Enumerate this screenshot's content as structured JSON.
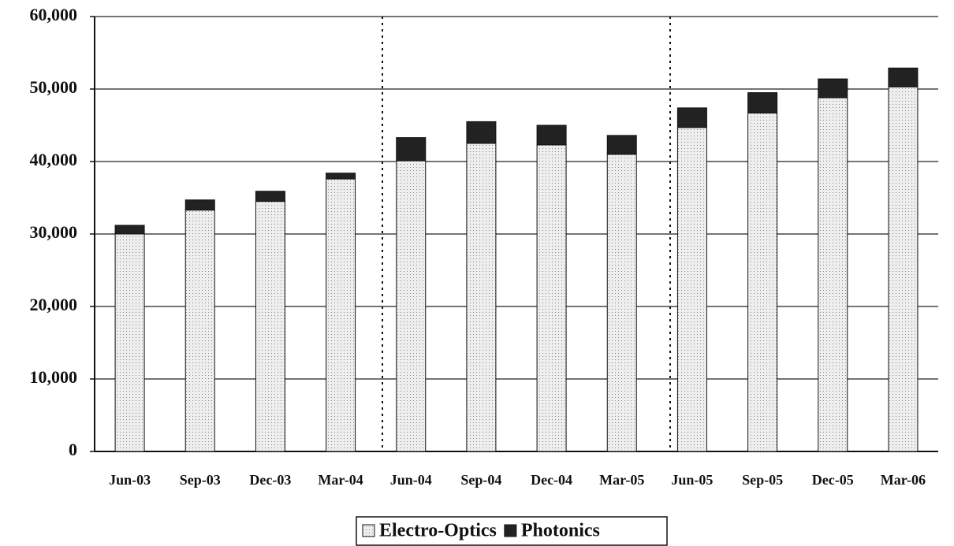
{
  "chart_data": {
    "type": "stacked_bar",
    "categories": [
      "Jun-03",
      "Sep-03",
      "Dec-03",
      "Mar-04",
      "Jun-04",
      "Sep-04",
      "Dec-04",
      "Mar-05",
      "Jun-05",
      "Sep-05",
      "Dec-05",
      "Mar-06"
    ],
    "series": [
      {
        "name": "Electro-Optics",
        "color": "#e6e6e6",
        "values": [
          30000,
          33300,
          34500,
          37600,
          40100,
          42500,
          42300,
          41000,
          44700,
          46700,
          48800,
          50300
        ]
      },
      {
        "name": "Photonics",
        "color": "#222222",
        "values": [
          1200,
          1400,
          1400,
          800,
          3200,
          3000,
          2700,
          2600,
          2700,
          2800,
          2600,
          2600
        ]
      }
    ],
    "ylim": [
      0,
      60000
    ],
    "yticks": [
      0,
      {
        "value": 10000,
        "label": "10,000"
      },
      {
        "value": 20000,
        "label": "20,000"
      },
      {
        "value": 30000,
        "label": "30,000"
      },
      {
        "value": 40000,
        "label": "40,000"
      },
      {
        "value": 50000,
        "label": "50,000"
      },
      {
        "value": 60000,
        "label": "60,000"
      }
    ],
    "grid": true,
    "legend": "bottom"
  }
}
